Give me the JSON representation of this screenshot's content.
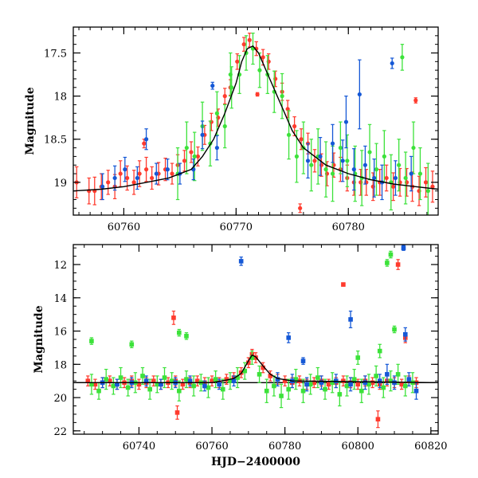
{
  "figure": {
    "xlabel": "HJD−2400000"
  },
  "colors": {
    "red": "#ff3b2e",
    "green": "#3ce23a",
    "blue": "#1558d6",
    "model": "#000000"
  },
  "chart_data": [
    {
      "type": "scatter",
      "panel": "top",
      "xlabel": "",
      "ylabel": "Magnitude",
      "xlim": [
        60755.5,
        60788
      ],
      "ylim": [
        19.38,
        17.2
      ],
      "y_inverted": true,
      "xticks": [
        60760,
        60770,
        60780
      ],
      "yticks": [
        17.5,
        18,
        18.5,
        19
      ],
      "model_curve": {
        "x": [
          60755.5,
          60758,
          60760,
          60762,
          60764,
          60766,
          60767,
          60768,
          60769,
          60770,
          60770.5,
          60771,
          60771.5,
          60772,
          60773,
          60774,
          60775,
          60776,
          60778,
          60780,
          60782,
          60784,
          60786,
          60788
        ],
        "y": [
          19.1,
          19.08,
          19.05,
          19.0,
          18.95,
          18.85,
          18.7,
          18.5,
          18.2,
          17.85,
          17.6,
          17.45,
          17.42,
          17.5,
          17.8,
          18.1,
          18.4,
          18.6,
          18.8,
          18.9,
          18.97,
          19.02,
          19.05,
          19.08
        ]
      },
      "series": [
        {
          "color": "red",
          "x": [
            60755.8,
            60756.9,
            60757.4,
            60758.0,
            60758.6,
            60759.2,
            60759.7,
            60760.3,
            60760.9,
            60761.4,
            60762.0,
            60762.5,
            60763.1,
            60763.7,
            60764.3,
            60764.8,
            60765.4,
            60766.0,
            60766.6,
            60767.2,
            60767.8,
            60768.4,
            60769.0,
            60769.5,
            60770.1,
            60770.7,
            60771.2,
            60771.8,
            60772.4,
            60772.9,
            60773.5,
            60774.1,
            60774.6,
            60775.2,
            60775.8,
            60776.4,
            60777.0,
            60777.6,
            60778.1,
            60778.7,
            60779.3,
            60779.9,
            60780.5,
            60781.1,
            60781.6,
            60782.2,
            60782.8,
            60783.4,
            60784.0,
            60784.6,
            60785.2,
            60785.7,
            60786.3,
            60786.9,
            60787.5,
            60761.8,
            60771.9,
            60775.7,
            60786.0
          ],
          "y": [
            19.0,
            19.1,
            19.1,
            19.05,
            19.0,
            19.05,
            18.9,
            18.95,
            19.0,
            18.9,
            18.85,
            18.95,
            18.9,
            18.85,
            18.9,
            18.8,
            18.75,
            18.65,
            18.7,
            18.45,
            18.3,
            18.25,
            18.0,
            17.9,
            17.6,
            17.4,
            17.35,
            17.45,
            17.55,
            17.6,
            17.8,
            17.95,
            18.15,
            18.35,
            18.5,
            18.55,
            18.75,
            18.8,
            18.9,
            18.8,
            18.85,
            18.95,
            19.0,
            19.0,
            19.0,
            19.05,
            19.0,
            18.95,
            19.05,
            19.0,
            19.0,
            19.05,
            19.1,
            19.0,
            19.05,
            18.55,
            17.98,
            19.3,
            18.05
          ],
          "err": [
            0.18,
            0.15,
            0.16,
            0.15,
            0.14,
            0.14,
            0.15,
            0.14,
            0.14,
            0.15,
            0.14,
            0.13,
            0.13,
            0.13,
            0.12,
            0.12,
            0.12,
            0.12,
            0.11,
            0.11,
            0.1,
            0.1,
            0.09,
            0.09,
            0.09,
            0.08,
            0.08,
            0.08,
            0.09,
            0.09,
            0.09,
            0.1,
            0.1,
            0.11,
            0.12,
            0.12,
            0.13,
            0.13,
            0.14,
            0.14,
            0.14,
            0.15,
            0.15,
            0.15,
            0.15,
            0.16,
            0.15,
            0.15,
            0.16,
            0.16,
            0.16,
            0.17,
            0.17,
            0.17,
            0.18,
            0.05,
            0.02,
            0.05,
            0.03
          ]
        },
        {
          "color": "green",
          "x": [
            60764.8,
            60765.6,
            60766.3,
            60767.0,
            60767.7,
            60768.3,
            60769.0,
            60769.6,
            60770.3,
            60770.9,
            60771.5,
            60772.1,
            60772.8,
            60773.4,
            60774.1,
            60774.7,
            60775.4,
            60776.0,
            60776.7,
            60777.3,
            60778.0,
            60778.6,
            60779.3,
            60779.9,
            60780.6,
            60781.2,
            60781.9,
            60782.5,
            60783.2,
            60783.8,
            60784.5,
            60785.1,
            60785.8,
            60786.4,
            60787.1,
            60769.5,
            60784.8
          ],
          "y": [
            18.9,
            18.6,
            18.7,
            18.35,
            18.55,
            18.2,
            18.35,
            17.9,
            17.75,
            17.5,
            17.45,
            17.7,
            17.75,
            17.95,
            18.0,
            18.45,
            18.7,
            18.6,
            18.8,
            18.7,
            18.85,
            18.9,
            18.6,
            18.75,
            18.9,
            18.95,
            18.65,
            18.85,
            18.7,
            19.0,
            18.8,
            18.95,
            18.6,
            18.9,
            19.1,
            17.75,
            17.55
          ],
          "err": [
            0.3,
            0.3,
            0.28,
            0.28,
            0.26,
            0.25,
            0.25,
            0.24,
            0.22,
            0.2,
            0.18,
            0.2,
            0.22,
            0.24,
            0.26,
            0.28,
            0.3,
            0.3,
            0.3,
            0.32,
            0.32,
            0.32,
            0.3,
            0.3,
            0.32,
            0.32,
            0.32,
            0.3,
            0.3,
            0.32,
            0.3,
            0.3,
            0.3,
            0.3,
            0.32,
            0.25,
            0.15
          ]
        },
        {
          "color": "blue",
          "x": [
            60758.1,
            60759.2,
            60760.1,
            60761.2,
            60762.0,
            60762.9,
            60763.9,
            60765.0,
            60766.2,
            60767.0,
            60768.3,
            60776.4,
            60777.5,
            60778.6,
            60779.5,
            60780.5,
            60781.5,
            60782.3,
            60783.0,
            60784.2,
            60785.6,
            60767.9,
            60781.0,
            60783.9,
            60779.8
          ],
          "y": [
            19.05,
            18.95,
            18.85,
            18.95,
            18.5,
            18.9,
            18.85,
            18.9,
            18.85,
            18.45,
            18.6,
            18.75,
            18.7,
            18.55,
            18.75,
            18.85,
            18.8,
            18.95,
            19.0,
            18.95,
            18.9,
            17.88,
            17.98,
            17.62,
            18.3
          ],
          "err": [
            0.15,
            0.14,
            0.14,
            0.13,
            0.12,
            0.12,
            0.12,
            0.12,
            0.12,
            0.16,
            0.14,
            0.2,
            0.22,
            0.22,
            0.24,
            0.24,
            0.22,
            0.22,
            0.2,
            0.2,
            0.2,
            0.04,
            0.4,
            0.06,
            0.3
          ]
        }
      ]
    },
    {
      "type": "scatter",
      "panel": "bottom",
      "xlabel": "HJD−2400000",
      "ylabel": "Magnitude",
      "xlim": [
        60722,
        60822
      ],
      "ylim": [
        22.2,
        10.8
      ],
      "y_inverted": true,
      "xticks": [
        60740,
        60760,
        60780,
        60800,
        60820
      ],
      "yticks": [
        12,
        14,
        16,
        18,
        20,
        22
      ],
      "reference_line": 19.1,
      "model_curve": {
        "x": [
          60722,
          60760,
          60764,
          60766,
          60768,
          60770,
          60771,
          60772,
          60774,
          60776,
          60778,
          60782,
          60822
        ],
        "y": [
          19.1,
          19.1,
          18.95,
          18.85,
          18.55,
          17.8,
          17.45,
          17.55,
          18.1,
          18.6,
          18.85,
          19.0,
          19.1
        ]
      },
      "series": [
        {
          "color": "red",
          "x": [
            60726,
            60728,
            60730,
            60732,
            60734,
            60736,
            60738,
            60740,
            60742,
            60744,
            60746,
            60748,
            60750,
            60752,
            60754,
            60756,
            60758,
            60760,
            60762,
            60764,
            60766,
            60768,
            60770,
            60771,
            60772,
            60774,
            60776,
            60778,
            60780,
            60782,
            60784,
            60786,
            60788,
            60790,
            60792,
            60794,
            60796,
            60798,
            60800,
            60802,
            60804,
            60806,
            60808,
            60810,
            60812,
            60814,
            60816,
            60749.5,
            60750.5,
            60796,
            60811,
            60813,
            60805.5
          ],
          "y": [
            19.0,
            19.2,
            19.1,
            19.0,
            19.2,
            19.1,
            19.0,
            19.2,
            19.1,
            19.0,
            19.2,
            19.1,
            19.0,
            19.2,
            19.1,
            19.0,
            19.1,
            19.0,
            19.1,
            18.9,
            18.8,
            18.5,
            17.9,
            17.4,
            17.6,
            18.2,
            18.7,
            18.9,
            19.0,
            19.1,
            19.0,
            19.2,
            19.1,
            19.0,
            19.2,
            19.1,
            19.0,
            19.1,
            19.2,
            19.0,
            19.1,
            19.2,
            19.0,
            19.1,
            19.2,
            19.0,
            19.1,
            15.2,
            20.9,
            13.2,
            12.0,
            16.4,
            21.3
          ],
          "err": [
            0.3,
            0.3,
            0.3,
            0.3,
            0.3,
            0.3,
            0.3,
            0.3,
            0.3,
            0.3,
            0.3,
            0.3,
            0.3,
            0.3,
            0.3,
            0.3,
            0.3,
            0.3,
            0.3,
            0.3,
            0.3,
            0.3,
            0.3,
            0.3,
            0.3,
            0.3,
            0.3,
            0.3,
            0.3,
            0.3,
            0.3,
            0.3,
            0.3,
            0.3,
            0.3,
            0.3,
            0.3,
            0.3,
            0.3,
            0.3,
            0.3,
            0.3,
            0.3,
            0.3,
            0.3,
            0.3,
            0.3,
            0.4,
            0.4,
            0.1,
            0.3,
            0.3,
            0.5
          ]
        },
        {
          "color": "green",
          "x": [
            60727,
            60729,
            60731,
            60733,
            60735,
            60737,
            60739,
            60741,
            60743,
            60745,
            60747,
            60749,
            60751,
            60753,
            60755,
            60757,
            60759,
            60761,
            60763,
            60765,
            60767,
            60769,
            60771,
            60773,
            60775,
            60777,
            60779,
            60781,
            60783,
            60785,
            60787,
            60789,
            60791,
            60793,
            60795,
            60797,
            60799,
            60801,
            60803,
            60805,
            60807,
            60809,
            60811,
            60813,
            60815,
            60727,
            60751,
            60753,
            60738,
            60808,
            60809,
            60810,
            60806,
            60800
          ],
          "y": [
            19.2,
            19.6,
            18.9,
            19.3,
            18.8,
            19.4,
            19.1,
            18.7,
            19.5,
            19.2,
            18.8,
            19.0,
            19.6,
            18.9,
            19.3,
            19.1,
            19.4,
            18.9,
            19.5,
            19.0,
            18.8,
            18.4,
            17.6,
            18.6,
            19.6,
            19.3,
            19.9,
            19.5,
            18.9,
            19.6,
            19.2,
            18.8,
            19.5,
            19.1,
            19.8,
            19.3,
            18.9,
            19.6,
            19.2,
            18.7,
            19.4,
            19.0,
            18.6,
            19.3,
            19.1,
            16.6,
            16.1,
            16.3,
            16.8,
            11.9,
            11.4,
            15.9,
            17.2,
            17.6
          ],
          "err": [
            0.6,
            0.5,
            0.6,
            0.5,
            0.6,
            0.5,
            0.6,
            0.5,
            0.6,
            0.5,
            0.6,
            0.5,
            0.6,
            0.5,
            0.6,
            0.5,
            0.6,
            0.5,
            0.6,
            0.5,
            0.6,
            0.5,
            0.4,
            0.5,
            0.7,
            0.6,
            0.7,
            0.6,
            0.6,
            0.7,
            0.6,
            0.6,
            0.6,
            0.6,
            0.7,
            0.6,
            0.6,
            0.7,
            0.6,
            0.6,
            0.6,
            0.6,
            0.6,
            0.6,
            0.6,
            0.2,
            0.2,
            0.2,
            0.2,
            0.2,
            0.2,
            0.2,
            0.4,
            0.4
          ]
        },
        {
          "color": "blue",
          "x": [
            60730,
            60734,
            60738,
            60742,
            60746,
            60750,
            60754,
            60758,
            60762,
            60766,
            60778,
            60782,
            60786,
            60790,
            60794,
            60798,
            60802,
            60806,
            60810,
            60814,
            60816,
            60768,
            60781,
            60785,
            60798,
            60812.5,
            60813,
            60808
          ],
          "y": [
            19.1,
            19.2,
            19.1,
            19.0,
            19.2,
            19.1,
            19.0,
            19.3,
            19.2,
            19.0,
            18.9,
            19.0,
            19.2,
            19.1,
            19.0,
            19.2,
            19.1,
            19.0,
            19.1,
            18.9,
            19.6,
            11.8,
            16.4,
            17.8,
            15.3,
            11.0,
            16.2,
            18.6
          ],
          "err": [
            0.3,
            0.3,
            0.3,
            0.3,
            0.3,
            0.3,
            0.3,
            0.3,
            0.3,
            0.3,
            0.4,
            0.4,
            0.4,
            0.4,
            0.4,
            0.4,
            0.4,
            0.4,
            0.4,
            0.4,
            0.5,
            0.25,
            0.3,
            0.2,
            0.5,
            0.15,
            0.4,
            0.6
          ]
        }
      ]
    }
  ]
}
